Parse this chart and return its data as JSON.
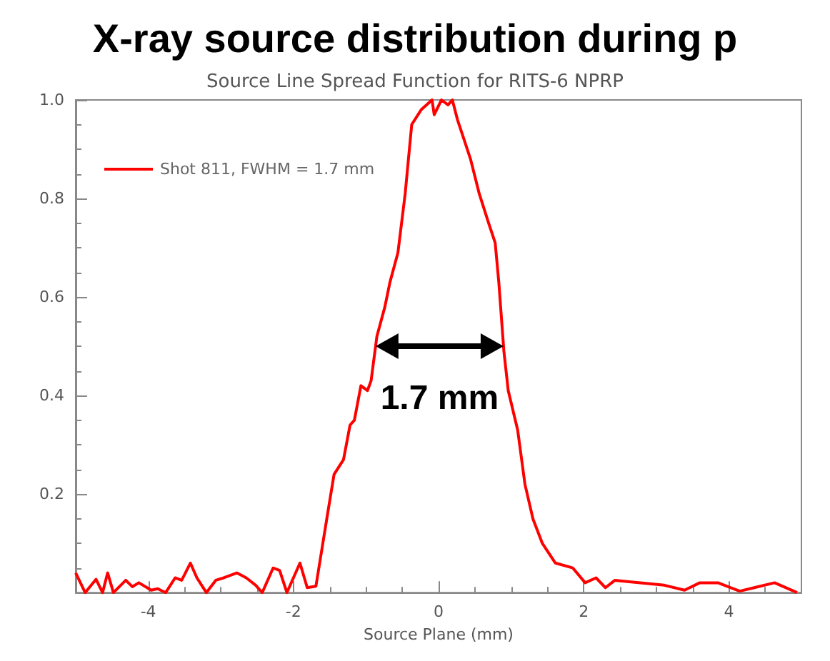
{
  "chart_data": {
    "type": "line",
    "title": "X-ray source distribution during p",
    "subtitle": "Source Line Spread Function for RITS-6 NPRP",
    "xlabel": "Source Plane (mm)",
    "xlim": [
      -5,
      5
    ],
    "xticks": [
      -4,
      -2,
      0,
      2,
      4
    ],
    "ylim": [
      0,
      1.0
    ],
    "yticks": [
      0.2,
      0.4,
      0.6,
      0.8,
      {
        "value": 1,
        "label": "1.0"
      }
    ],
    "grid": false,
    "legend": "top left",
    "marker": "none",
    "line_style": "solid",
    "annotations": [
      "1.7 mm"
    ],
    "series": [
      {
        "name": "Shot 811, FWHM = 1.7 mm",
        "color": "#ff0000",
        "x": [
          -5,
          -4.87,
          -4.72,
          -4.63,
          -4.56,
          -4.48,
          -4.31,
          -4.22,
          -4.13,
          -3.96,
          -3.87,
          -3.76,
          -3.63,
          -3.54,
          -3.42,
          -3.33,
          -3.2,
          -3.07,
          -2.96,
          -2.78,
          -2.65,
          -2.52,
          -2.43,
          -2.28,
          -2.19,
          -2.09,
          -1.91,
          -1.81,
          -1.69,
          -1.54,
          -1.44,
          -1.31,
          -1.22,
          -1.16,
          -1.07,
          -0.98,
          -0.93,
          -0.85,
          -0.74,
          -0.67,
          -0.56,
          -0.46,
          -0.37,
          -0.24,
          -0.09,
          -0.06,
          0.04,
          0.13,
          0.19,
          0.26,
          0.35,
          0.44,
          0.56,
          0.69,
          0.78,
          0.83,
          0.9,
          0.96,
          1.09,
          1.19,
          1.3,
          1.43,
          1.61,
          1.85,
          2.02,
          2.17,
          2.3,
          2.43,
          2.78,
          3.11,
          3.39,
          3.6,
          3.85,
          4.15,
          4.35,
          4.63,
          4.94
        ],
        "values": [
          0.04,
          0.0,
          0.027,
          0.0,
          0.04,
          0.0,
          0.025,
          0.012,
          0.02,
          0.005,
          0.008,
          0.0,
          0.03,
          0.025,
          0.06,
          0.03,
          0.0,
          0.025,
          0.03,
          0.04,
          0.03,
          0.015,
          0.0,
          0.05,
          0.045,
          0.0,
          0.06,
          0.01,
          0.013,
          0.15,
          0.24,
          0.27,
          0.34,
          0.35,
          0.42,
          0.41,
          0.43,
          0.52,
          0.58,
          0.63,
          0.69,
          0.81,
          0.95,
          0.98,
          1.0,
          0.97,
          1.0,
          0.99,
          1.0,
          0.96,
          0.92,
          0.88,
          0.81,
          0.75,
          0.71,
          0.63,
          0.49,
          0.41,
          0.33,
          0.22,
          0.15,
          0.1,
          0.06,
          0.05,
          0.02,
          0.03,
          0.01,
          0.025,
          0.02,
          0.015,
          0.005,
          0.02,
          0.02,
          0.003,
          0.01,
          0.02,
          0.0
        ]
      }
    ]
  }
}
